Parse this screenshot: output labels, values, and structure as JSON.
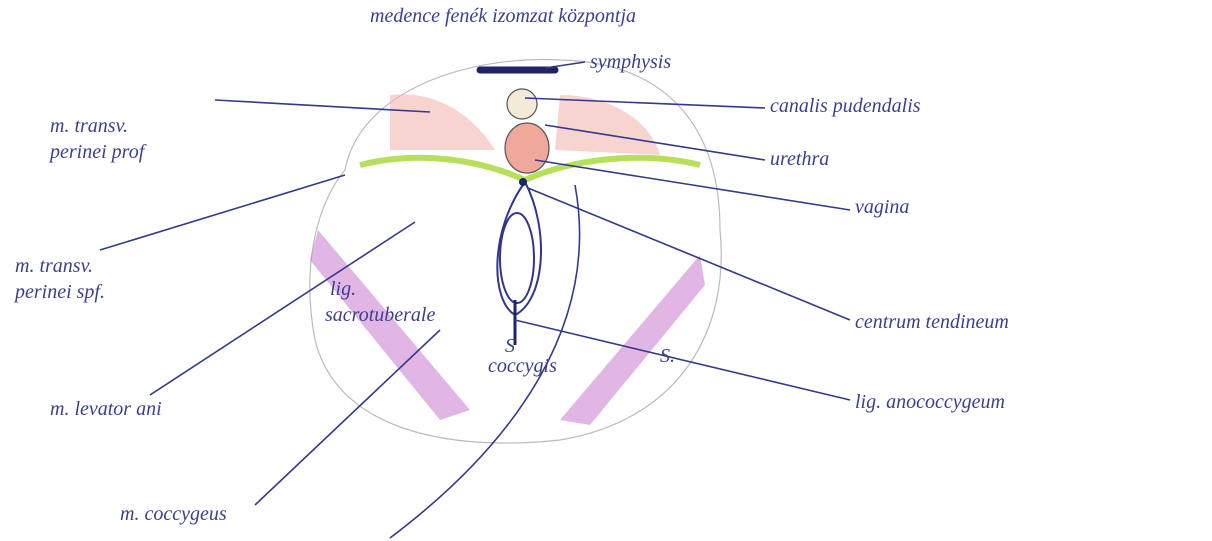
{
  "title": "medence fenék izomzat központja",
  "labels": [
    {
      "lines": [
        "symphysis"
      ]
    },
    {
      "lines": [
        "canalis pudendalis"
      ]
    },
    {
      "lines": [
        "urethra"
      ]
    },
    {
      "lines": [
        "vagina"
      ]
    },
    {
      "lines": [
        "centrum tendineum"
      ]
    },
    {
      "lines": [
        "lig. anococcygeum"
      ]
    },
    {
      "lines": [
        "m. transv.",
        "perinei prof"
      ]
    },
    {
      "lines": [
        "m. transv.",
        "perinei spf."
      ]
    },
    {
      "lines": [
        "m. levator ani"
      ]
    },
    {
      "lines": [
        "m. coccygeus"
      ]
    },
    {
      "lines": [
        "lig.",
        "sacrotuberale"
      ]
    },
    {
      "lines": [
        "coccygis"
      ]
    },
    {
      "lines": [
        "S"
      ]
    },
    {
      "lines": [
        "S."
      ]
    }
  ]
}
